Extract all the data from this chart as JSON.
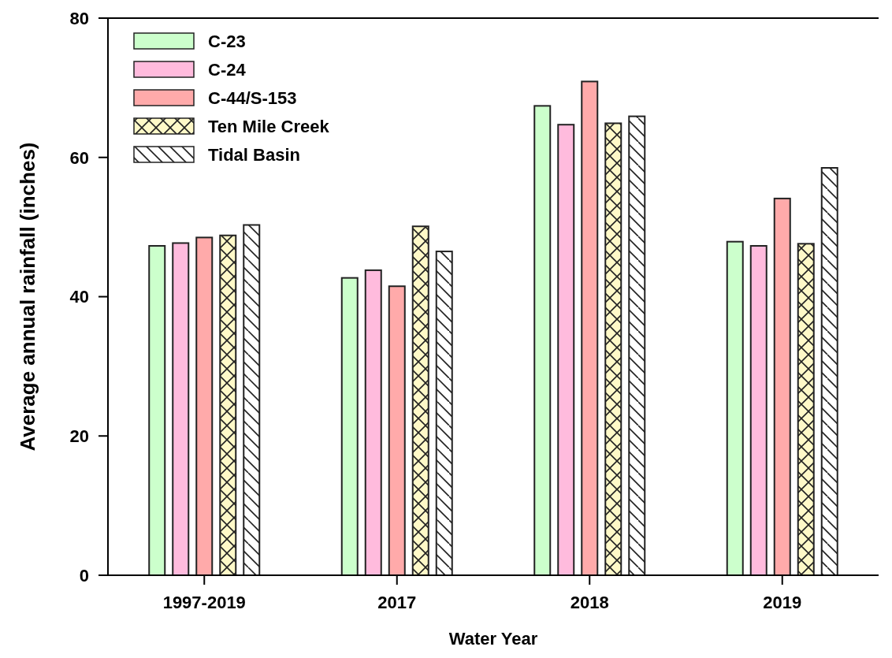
{
  "chart_data": {
    "type": "bar",
    "xlabel": "Water Year",
    "ylabel": "Average annual rainfall (inches)",
    "categories": [
      "1997-2019",
      "2017",
      "2018",
      "2019"
    ],
    "ylim": [
      0,
      80
    ],
    "yticks": [
      0,
      20,
      40,
      60,
      80
    ],
    "legend": "top left",
    "series": [
      {
        "name": "C-23",
        "color": "#ccffcc",
        "values": [
          47.3,
          42.7,
          67.4,
          47.9
        ]
      },
      {
        "name": "C-24",
        "color": "#ffbbdd",
        "values": [
          47.7,
          43.8,
          64.7,
          47.3
        ]
      },
      {
        "name": "C-44/S-153",
        "color": "#ffaaaa",
        "values": [
          48.5,
          41.5,
          70.9,
          54.1
        ]
      },
      {
        "name": "Ten Mile Creek",
        "color": "#fff9c8",
        "values": [
          48.8,
          50.1,
          64.9,
          47.6
        ]
      },
      {
        "name": "Tidal Basin",
        "color": "#ffffff",
        "values": [
          50.3,
          46.5,
          65.9,
          58.5
        ]
      }
    ]
  }
}
